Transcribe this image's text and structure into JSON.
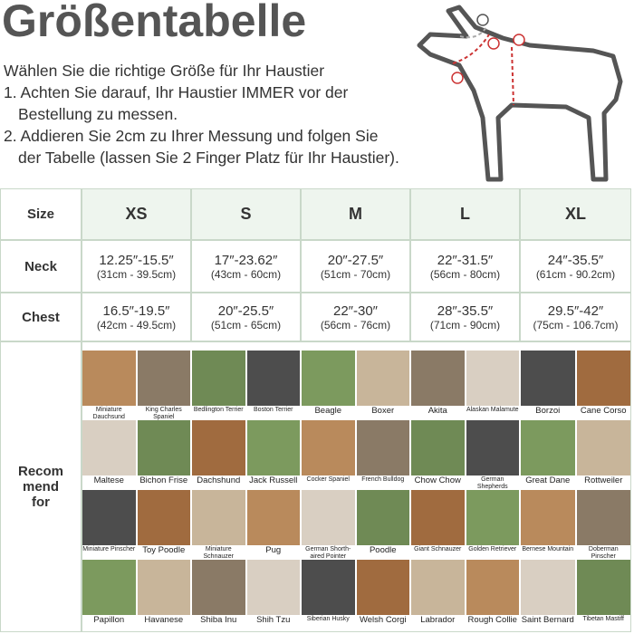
{
  "title": "Größentabelle",
  "intro": [
    "Wählen Sie die richtige Größe für Ihr Haustier",
    "1. Achten Sie darauf, Ihr Haustier IMMER vor der",
    "Bestellung zu messen.",
    "2. Addieren Sie 2cm zu Ihrer Messung und folgen Sie",
    "der Tabelle (lassen Sie 2 Finger Platz für Ihr Haustier)."
  ],
  "table": {
    "header": [
      "Size",
      "XS",
      "S",
      "M",
      "L",
      "XL"
    ],
    "rows": [
      {
        "label": "Neck",
        "cells": [
          {
            "inch": "12.25″-15.5″",
            "cm": "(31cm - 39.5cm)"
          },
          {
            "inch": "17″-23.62″",
            "cm": "(43cm - 60cm)"
          },
          {
            "inch": "20″-27.5″",
            "cm": "(51cm - 70cm)"
          },
          {
            "inch": "22″-31.5″",
            "cm": "(56cm - 80cm)"
          },
          {
            "inch": "24″-35.5″",
            "cm": "(61cm - 90.2cm)"
          }
        ]
      },
      {
        "label": "Chest",
        "cells": [
          {
            "inch": "16.5″-19.5″",
            "cm": "(42cm - 49.5cm)"
          },
          {
            "inch": "20″-25.5″",
            "cm": "(51cm - 65cm)"
          },
          {
            "inch": "22″-30″",
            "cm": "(56cm - 76cm)"
          },
          {
            "inch": "28″-35.5″",
            "cm": "(71cm - 90cm)"
          },
          {
            "inch": "29.5″-42″",
            "cm": "(75cm - 106.7cm)"
          }
        ]
      }
    ],
    "recommend": {
      "label": [
        "Recom",
        "mend",
        "for"
      ],
      "breeds": [
        [
          "Miniature Dauchsund",
          "King Charles Spaniel",
          "Maltese",
          "Bichon Frise",
          "Miniature Pinscher",
          "Toy Poodle",
          "Papillon",
          "Havanese"
        ],
        [
          "Bedlington Terrier",
          "Boston Terrier",
          "Dachshund",
          "Jack Russell",
          "Miniature Schnauzer",
          "Pug",
          "Shiba Inu",
          "Shih Tzu"
        ],
        [
          "Beagle",
          "Boxer",
          "Cocker Spaniel",
          "French Bulldog",
          "German Shorth-aired Pointer",
          "Poodle",
          "Siberian Husky",
          "Welsh Corgi"
        ],
        [
          "Akita",
          "Alaskan Malamute",
          "Chow Chow",
          "German Shepherds",
          "Giant Schnauzer",
          "Golden Retriever",
          "Labrador",
          "Rough Collie"
        ],
        [
          "Borzoi",
          "Cane Corso",
          "Great Dane",
          "Rottweiler",
          "Bernese Mountain",
          "Doberman Pinscher",
          "Saint Bernard",
          "Tibetan Mastiff"
        ]
      ]
    }
  }
}
